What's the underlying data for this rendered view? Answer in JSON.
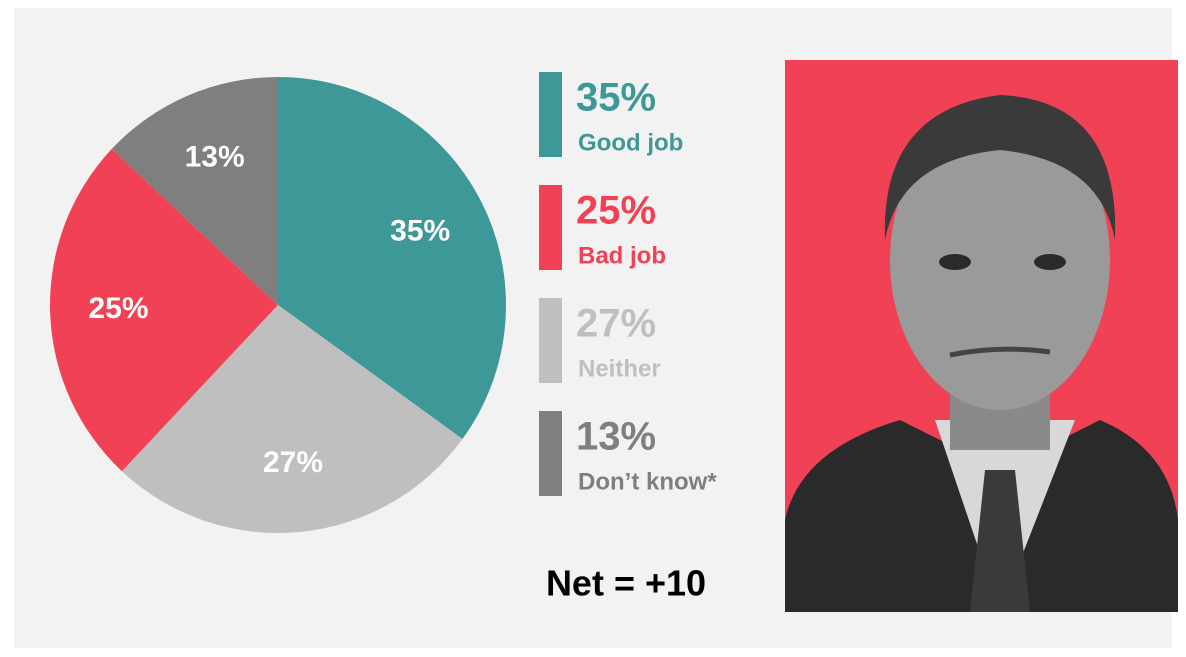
{
  "chart_data": {
    "type": "pie",
    "categories": [
      "Good job",
      "Neither",
      "Bad job",
      "Don’t know*"
    ],
    "values": [
      35,
      27,
      25,
      13
    ],
    "value_labels": [
      "35%",
      "27%",
      "25%",
      "13%"
    ],
    "colors": [
      "#3f9898",
      "#bfbfbf",
      "#f04155",
      "#7f7f7f"
    ],
    "annotation": "Net = +10"
  }
}
